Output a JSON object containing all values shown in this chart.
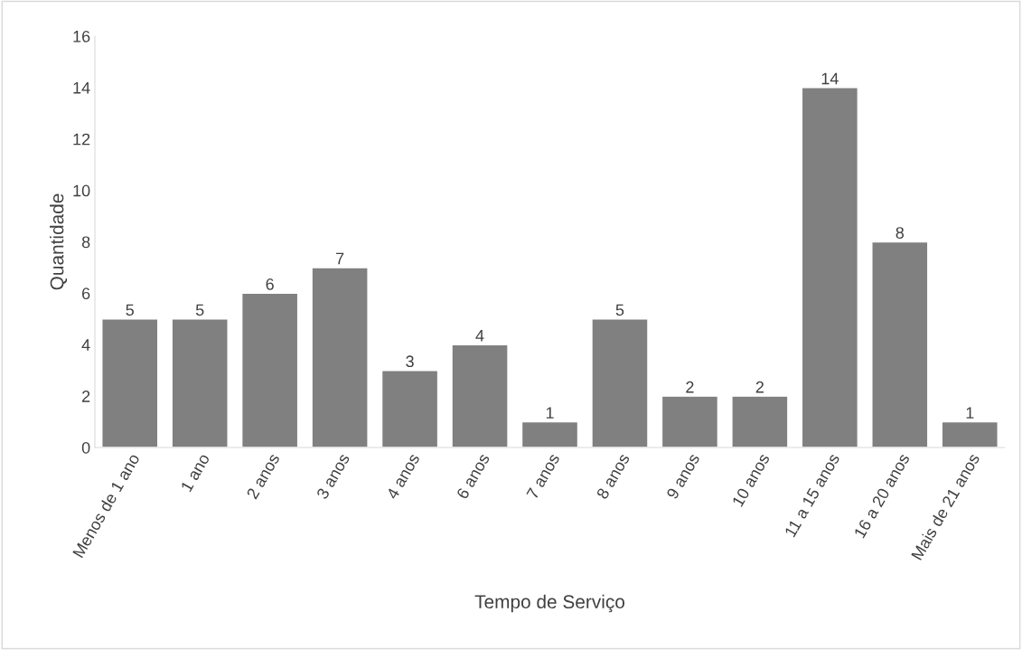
{
  "chart_data": {
    "type": "bar",
    "xlabel": "Tempo de Serviço",
    "ylabel": "Quantidade",
    "categories": [
      "Menos de 1 ano",
      "1 ano",
      "2 anos",
      "3 anos",
      "4 anos",
      "6 anos",
      "7 anos",
      "8 anos",
      "9 anos",
      "10 anos",
      "11 a 15 anos",
      "16 a 20 anos",
      "Mais de 21 anos"
    ],
    "values": [
      5,
      5,
      6,
      7,
      3,
      4,
      1,
      5,
      2,
      2,
      14,
      8,
      1
    ],
    "color": "#808080",
    "ylim": [
      0,
      16
    ],
    "yticks": [
      0,
      2,
      4,
      6,
      8,
      10,
      12,
      14,
      16
    ],
    "grid": false,
    "data_labels": true,
    "legend": false
  }
}
